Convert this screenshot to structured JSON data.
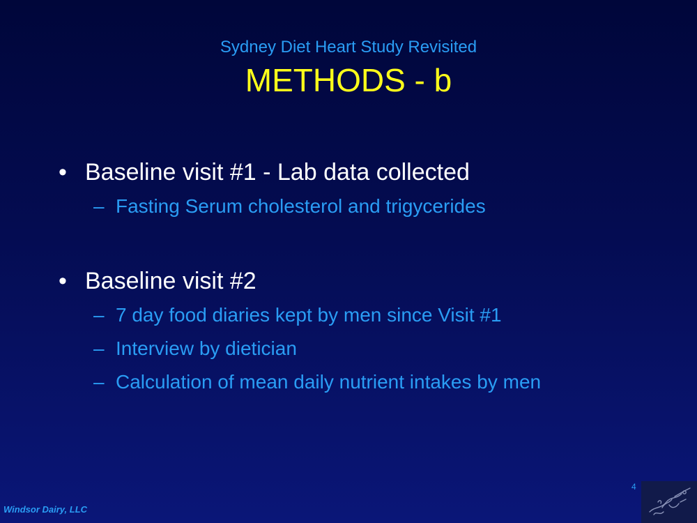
{
  "slide": {
    "subtitle": "Sydney Diet Heart Study Revisited",
    "title": "METHODS - b",
    "bullet_symbol": "•",
    "dash_symbol": "–",
    "bullets": [
      {
        "text": "Baseline visit #1 - Lab data collected",
        "sub": [
          "Fasting Serum cholesterol and trigycerides"
        ]
      },
      {
        "text": "Baseline visit #2",
        "sub": [
          "7 day food diaries kept by men since Visit #1",
          "Interview by dietician",
          "Calculation of mean daily nutrient intakes by men"
        ]
      }
    ],
    "footer": "Windsor Dairy, LLC",
    "page_number": "4",
    "logo_icon": "pen-sketch-icon"
  },
  "colors": {
    "title": "#ffff1a",
    "accent": "#2a9df4",
    "text": "#ffffff",
    "background": "#040c52"
  }
}
